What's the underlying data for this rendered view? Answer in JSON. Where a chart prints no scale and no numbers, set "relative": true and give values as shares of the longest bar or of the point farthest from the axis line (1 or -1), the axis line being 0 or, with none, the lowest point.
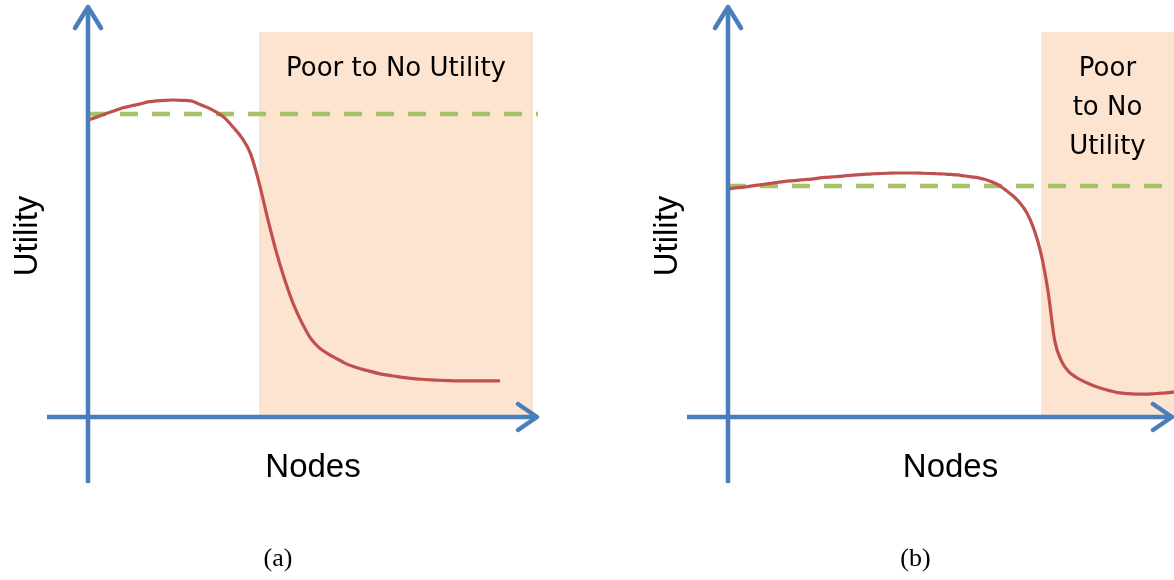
{
  "chart_data": [
    {
      "type": "line",
      "title": "(a)",
      "xlabel": "Nodes",
      "ylabel": "Utility",
      "relative": true,
      "categories": [
        null,
        null,
        null,
        null,
        null,
        null,
        null,
        null,
        null,
        null,
        null,
        null,
        null,
        null,
        null,
        null,
        null,
        null,
        null,
        null,
        null,
        null,
        null,
        null,
        null,
        null,
        null,
        null,
        null,
        null,
        null,
        null,
        null,
        null,
        null,
        null,
        null,
        null,
        null,
        null,
        null,
        null,
        null,
        null,
        null,
        null,
        null,
        null,
        null
      ],
      "series": [
        {
          "color": "#c0504d",
          "values": [
            0.937,
            0.946,
            0.956,
            0.965,
            0.975,
            0.981,
            0.987,
            0.994,
            0.997,
            0.999,
            1.0,
            0.999,
            0.997,
            0.987,
            0.976,
            0.962,
            0.943,
            0.913,
            0.88,
            0.83,
            0.738,
            0.625,
            0.521,
            0.432,
            0.356,
            0.297,
            0.249,
            0.219,
            0.2,
            0.185,
            0.17,
            0.159,
            0.151,
            0.144,
            0.137,
            0.132,
            0.128,
            0.124,
            0.121,
            0.119,
            0.117,
            0.116,
            0.115,
            0.114,
            0.114,
            0.114,
            0.114,
            0.114,
            0.114
          ]
        }
      ],
      "ref_lines": [
        {
          "axis": "y",
          "value": 0.956,
          "color": "#9bbb59",
          "line_style": "dashed"
        }
      ],
      "annotations": [
        "Poor to No Utility"
      ]
    },
    {
      "type": "line",
      "title": "(b)",
      "xlabel": "Nodes",
      "ylabel": "Utility",
      "relative": true,
      "categories": [
        null,
        null,
        null,
        null,
        null,
        null,
        null,
        null,
        null,
        null,
        null,
        null,
        null,
        null,
        null,
        null,
        null,
        null,
        null,
        null,
        null,
        null,
        null,
        null,
        null,
        null,
        null,
        null,
        null,
        null,
        null,
        null,
        null,
        null,
        null,
        null,
        null,
        null,
        null,
        null,
        null,
        null,
        null,
        null,
        null,
        null,
        null,
        null,
        null,
        null,
        null,
        null,
        null,
        null,
        null,
        null,
        null,
        null,
        null,
        null,
        null,
        null,
        null,
        null,
        null
      ],
      "series": [
        {
          "color": "#c0504d",
          "values": [
            0.934,
            0.939,
            0.941,
            0.945,
            0.949,
            0.953,
            0.957,
            0.961,
            0.965,
            0.968,
            0.97,
            0.973,
            0.975,
            0.979,
            0.982,
            0.984,
            0.986,
            0.989,
            0.991,
            0.993,
            0.995,
            0.997,
            0.998,
            0.999,
            1.0,
            1.0,
            1.0,
            1.0,
            0.999,
            0.998,
            0.997,
            0.996,
            0.994,
            0.992,
            0.988,
            0.984,
            0.98,
            0.973,
            0.963,
            0.949,
            0.928,
            0.906,
            0.877,
            0.836,
            0.77,
            0.672,
            0.52,
            0.311,
            0.227,
            0.186,
            0.164,
            0.148,
            0.135,
            0.124,
            0.115,
            0.107,
            0.1,
            0.097,
            0.095,
            0.094,
            0.094,
            0.095,
            0.097,
            0.099,
            0.102
          ]
        }
      ],
      "ref_lines": [
        {
          "axis": "y",
          "value": 0.947,
          "color": "#9bbb59",
          "line_style": "dashed"
        }
      ],
      "annotations": [
        "Poor to No Utility"
      ]
    }
  ]
}
